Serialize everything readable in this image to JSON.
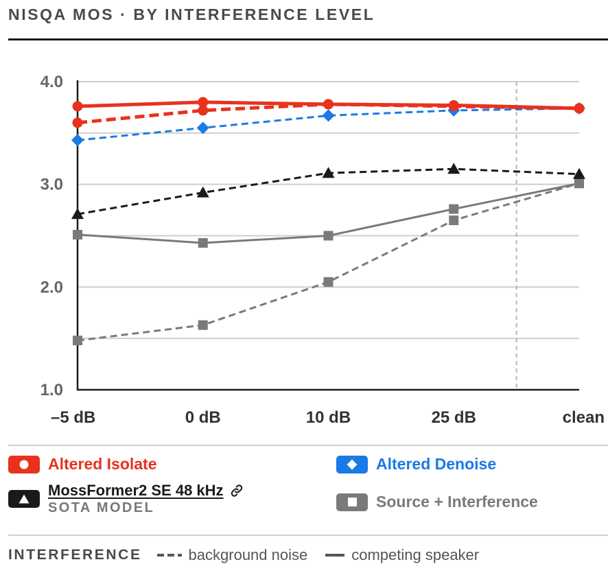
{
  "header": {
    "title": "NISQA MOS · BY INTERFERENCE LEVEL"
  },
  "chart_data": {
    "type": "line",
    "categories": [
      "–5 dB",
      "0 dB",
      "10 dB",
      "25 dB",
      "clean"
    ],
    "ylim": [
      1.0,
      4.0
    ],
    "yticks": [
      1.0,
      2.0,
      3.0,
      4.0
    ],
    "ytick_labels": [
      "1.0",
      "2.0",
      "3.0",
      "4.0"
    ],
    "gridlines": [
      1.5,
      2.0,
      2.5,
      3.0,
      3.5,
      4.0
    ],
    "grid": true,
    "xlabel": "",
    "ylabel": "",
    "series": [
      {
        "key": "isolate",
        "name": "Altered Isolate",
        "interference": "background noise",
        "color": "#e8321e",
        "marker": "circle",
        "dash": true,
        "values": [
          3.6,
          3.72,
          3.78,
          3.76,
          3.74
        ]
      },
      {
        "key": "isolate",
        "name": "Altered Isolate",
        "interference": "competing speaker",
        "color": "#e8321e",
        "marker": "circle",
        "dash": false,
        "values": [
          3.76,
          3.8,
          3.78,
          3.77,
          3.74
        ]
      },
      {
        "key": "denoise",
        "name": "Altered Denoise",
        "interference": "background noise",
        "color": "#1a7ae6",
        "marker": "diamond",
        "dash": true,
        "values": [
          3.43,
          3.55,
          3.67,
          3.72,
          3.74
        ]
      },
      {
        "key": "moss",
        "name": "MossFormer2 SE 48 kHz",
        "interference": "background noise",
        "color": "#1a1a1a",
        "marker": "triangle",
        "dash": true,
        "values": [
          2.71,
          2.92,
          3.11,
          3.15,
          3.1
        ]
      },
      {
        "key": "source",
        "name": "Source + Interference",
        "interference": "competing speaker",
        "color": "#7a7a7a",
        "marker": "square",
        "dash": false,
        "values": [
          2.51,
          2.43,
          2.5,
          2.76,
          3.01
        ]
      },
      {
        "key": "source",
        "name": "Source + Interference",
        "interference": "background noise",
        "color": "#7a7a7a",
        "marker": "square",
        "dash": true,
        "values": [
          1.48,
          1.63,
          2.05,
          2.65,
          3.01
        ]
      }
    ]
  },
  "legend": {
    "isolate": {
      "label": "Altered Isolate",
      "color": "#e8321e",
      "icon": "circle-icon"
    },
    "denoise": {
      "label": "Altered Denoise",
      "color": "#1a7ae6",
      "icon": "diamond-icon"
    },
    "moss": {
      "label": "MossFormer2 SE 48 kHz",
      "sublabel": "SOTA MODEL",
      "color": "#1a1a1a",
      "icon": "triangle-icon",
      "link_icon": "link-icon"
    },
    "source": {
      "label": "Source + Interference",
      "color": "#7a7a7a",
      "icon": "square-icon"
    }
  },
  "interference_legend": {
    "title": "INTERFERENCE",
    "items": [
      {
        "label": "background noise",
        "style": "dashed"
      },
      {
        "label": "competing speaker",
        "style": "solid"
      }
    ]
  }
}
